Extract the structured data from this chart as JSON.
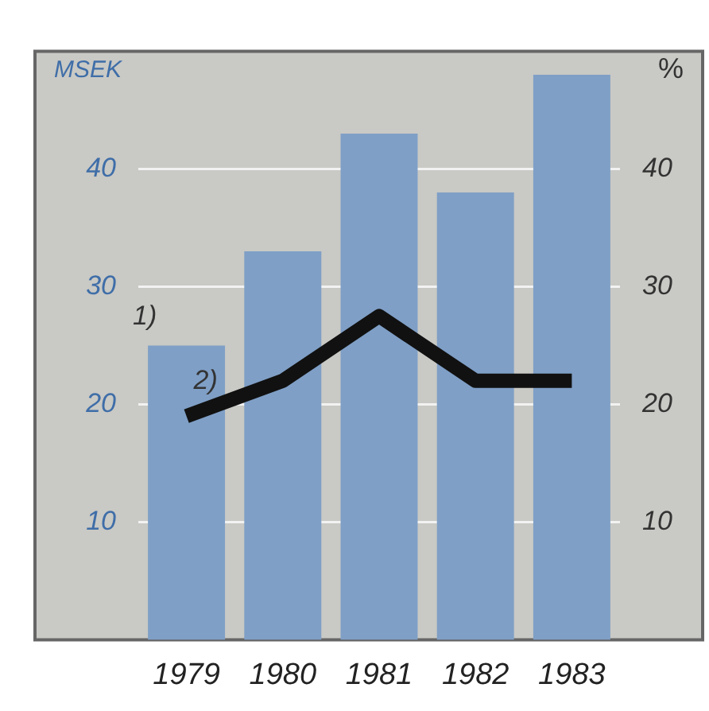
{
  "chart_data": {
    "type": "bar",
    "ylabel": "MSEK",
    "y2label": "%",
    "categories": [
      "1979",
      "1980",
      "1981",
      "1982",
      "1983"
    ],
    "series": [
      {
        "color": "#7f9fc6",
        "values": [
          25,
          33,
          43,
          38,
          48
        ]
      },
      {
        "type": "line",
        "axis": "y2",
        "color": "#111111",
        "values": [
          19,
          22,
          27.5,
          22,
          22
        ]
      }
    ],
    "ylim": [
      0,
      50
    ],
    "yticks": [
      10,
      20,
      30,
      40
    ],
    "y2lim": [
      0,
      50
    ],
    "y2ticks": [
      10,
      20,
      30,
      40
    ],
    "grid": "y",
    "legend": false,
    "marker": "none",
    "line_style": "solid",
    "annotations": [
      "1)",
      "2)"
    ]
  }
}
